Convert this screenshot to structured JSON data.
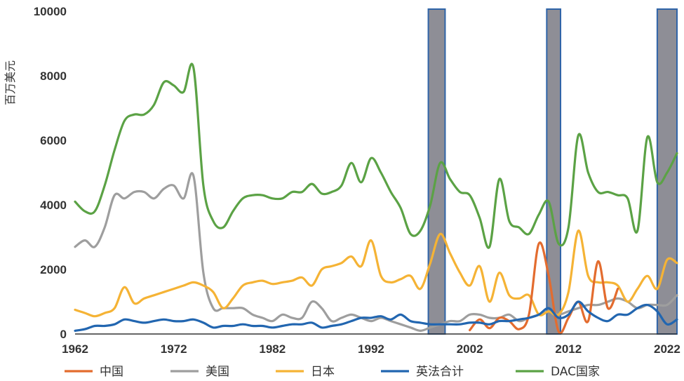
{
  "chart_data": {
    "type": "line",
    "ylabel": "百万美元",
    "xlabel": "",
    "title": "",
    "xlim": [
      1962,
      2023
    ],
    "ylim": [
      0,
      10000
    ],
    "x_ticks": [
      "1962",
      "1972",
      "1982",
      "1992",
      "2002",
      "2012",
      "2022"
    ],
    "y_ticks": [
      "0",
      "2000",
      "4000",
      "6000",
      "8000",
      "10000"
    ],
    "grid": false,
    "legend_position": "bottom",
    "shaded_periods": [
      [
        1997.8,
        1999.5
      ],
      [
        2009.8,
        2011.2
      ],
      [
        2021.0,
        2023.0
      ]
    ],
    "series": [
      {
        "name": "中国",
        "color": "#E36C2F",
        "x": [
          2002,
          2003,
          2004,
          2005,
          2006,
          2007,
          2008,
          2009,
          2010,
          2011,
          2012,
          2013,
          2014,
          2015,
          2016,
          2017
        ],
        "y": [
          120,
          450,
          180,
          500,
          400,
          150,
          600,
          2800,
          1800,
          80,
          500,
          1000,
          400,
          2250,
          800,
          1400
        ]
      },
      {
        "name": "美国",
        "color": "#9E9E9E",
        "x": [
          1962,
          1963,
          1964,
          1965,
          1966,
          1967,
          1968,
          1969,
          1970,
          1971,
          1972,
          1973,
          1974,
          1975,
          1976,
          1977,
          1978,
          1979,
          1980,
          1981,
          1982,
          1983,
          1984,
          1985,
          1986,
          1987,
          1988,
          1989,
          1990,
          1991,
          1992,
          1993,
          1994,
          1995,
          1996,
          1997,
          1998,
          1999,
          2000,
          2001,
          2002,
          2003,
          2004,
          2005,
          2006,
          2007,
          2008,
          2009,
          2010,
          2011,
          2012,
          2013,
          2014,
          2015,
          2016,
          2017,
          2018,
          2019,
          2020,
          2021,
          2022,
          2023
        ],
        "y": [
          2700,
          2900,
          2700,
          3300,
          4300,
          4200,
          4400,
          4400,
          4200,
          4500,
          4600,
          4200,
          4900,
          1900,
          800,
          800,
          800,
          800,
          600,
          500,
          400,
          600,
          500,
          500,
          1000,
          800,
          400,
          500,
          600,
          500,
          400,
          500,
          400,
          300,
          200,
          100,
          200,
          300,
          400,
          400,
          600,
          600,
          500,
          500,
          600,
          400,
          500,
          600,
          700,
          600,
          700,
          800,
          900,
          900,
          1000,
          1100,
          1000,
          800,
          900,
          900,
          900,
          1200
        ]
      },
      {
        "name": "日本",
        "color": "#F5B335",
        "x": [
          1962,
          1963,
          1964,
          1965,
          1966,
          1967,
          1968,
          1969,
          1970,
          1971,
          1972,
          1973,
          1974,
          1975,
          1976,
          1977,
          1978,
          1979,
          1980,
          1981,
          1982,
          1983,
          1984,
          1985,
          1986,
          1987,
          1988,
          1989,
          1990,
          1991,
          1992,
          1993,
          1994,
          1995,
          1996,
          1997,
          1998,
          1999,
          2000,
          2001,
          2002,
          2003,
          2004,
          2005,
          2006,
          2007,
          2008,
          2009,
          2010,
          2011,
          2012,
          2013,
          2014,
          2015,
          2016,
          2017,
          2018,
          2019,
          2020,
          2021,
          2022,
          2023
        ],
        "y": [
          750,
          650,
          550,
          650,
          800,
          1450,
          950,
          1100,
          1200,
          1300,
          1400,
          1500,
          1600,
          1500,
          1300,
          800,
          1100,
          1500,
          1600,
          1650,
          1550,
          1600,
          1650,
          1750,
          1500,
          2000,
          2100,
          2200,
          2400,
          2100,
          2900,
          1800,
          1600,
          1700,
          1800,
          1400,
          2200,
          3100,
          2500,
          1900,
          1500,
          2100,
          1000,
          1900,
          1200,
          1100,
          1200,
          600,
          700,
          600,
          1300,
          3200,
          1800,
          1600,
          1600,
          1500,
          1000,
          1400,
          1800,
          1400,
          2300,
          2200
        ]
      },
      {
        "name": "英法合计",
        "color": "#2266B0",
        "x": [
          1962,
          1963,
          1964,
          1965,
          1966,
          1967,
          1968,
          1969,
          1970,
          1971,
          1972,
          1973,
          1974,
          1975,
          1976,
          1977,
          1978,
          1979,
          1980,
          1981,
          1982,
          1983,
          1984,
          1985,
          1986,
          1987,
          1988,
          1989,
          1990,
          1991,
          1992,
          1993,
          1994,
          1995,
          1996,
          1997,
          1998,
          1999,
          2000,
          2001,
          2002,
          2003,
          2004,
          2005,
          2006,
          2007,
          2008,
          2009,
          2010,
          2011,
          2012,
          2013,
          2014,
          2015,
          2016,
          2017,
          2018,
          2019,
          2020,
          2021,
          2022,
          2023
        ],
        "y": [
          100,
          150,
          250,
          250,
          300,
          450,
          400,
          350,
          400,
          450,
          400,
          400,
          450,
          350,
          200,
          250,
          250,
          300,
          250,
          250,
          200,
          250,
          300,
          300,
          350,
          200,
          250,
          300,
          400,
          500,
          500,
          550,
          450,
          600,
          400,
          350,
          300,
          300,
          300,
          300,
          350,
          350,
          300,
          400,
          400,
          450,
          500,
          600,
          800,
          500,
          600,
          1000,
          700,
          500,
          400,
          600,
          600,
          800,
          900,
          700,
          300,
          450
        ]
      },
      {
        "name": "DAC国家",
        "color": "#5BA245",
        "x": [
          1962,
          1963,
          1964,
          1965,
          1966,
          1967,
          1968,
          1969,
          1970,
          1971,
          1972,
          1973,
          1974,
          1975,
          1976,
          1977,
          1978,
          1979,
          1980,
          1981,
          1982,
          1983,
          1984,
          1985,
          1986,
          1987,
          1988,
          1989,
          1990,
          1991,
          1992,
          1993,
          1994,
          1995,
          1996,
          1997,
          1998,
          1999,
          2000,
          2001,
          2002,
          2003,
          2004,
          2005,
          2006,
          2007,
          2008,
          2009,
          2010,
          2011,
          2012,
          2013,
          2014,
          2015,
          2016,
          2017,
          2018,
          2019,
          2020,
          2021,
          2022,
          2023
        ],
        "y": [
          4100,
          3800,
          3800,
          4600,
          5700,
          6600,
          6800,
          6800,
          7100,
          7800,
          7700,
          7500,
          8250,
          4600,
          3500,
          3300,
          3800,
          4200,
          4300,
          4300,
          4200,
          4200,
          4400,
          4400,
          4650,
          4350,
          4400,
          4600,
          5300,
          4700,
          5450,
          5000,
          4400,
          3900,
          3100,
          3200,
          4000,
          5300,
          4800,
          4400,
          4300,
          3600,
          2700,
          4800,
          3500,
          3300,
          3100,
          3700,
          4100,
          2800,
          3300,
          6150,
          5000,
          4400,
          4400,
          4300,
          4200,
          3200,
          6100,
          4700,
          5000,
          5600
        ]
      }
    ]
  }
}
